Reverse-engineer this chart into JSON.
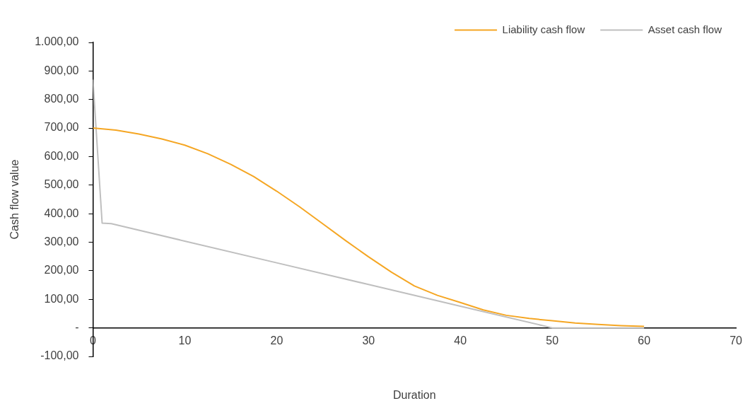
{
  "chart_data": {
    "type": "line",
    "xlabel": "Duration",
    "ylabel": "Cash flow value",
    "series": [
      {
        "name": "Liability cash flow",
        "color": "#f5a623",
        "x": [
          0,
          2.5,
          5,
          7.5,
          10,
          12.5,
          15,
          17.5,
          20,
          22.5,
          25,
          27.5,
          30,
          32.5,
          35,
          37.5,
          40,
          42.5,
          45,
          47.5,
          50,
          52.5,
          55,
          57.5,
          60
        ],
        "values": [
          700,
          693,
          679,
          662,
          640,
          610,
          573,
          530,
          479,
          424,
          365,
          306,
          249,
          195,
          147,
          114,
          89,
          63,
          44,
          33,
          25,
          17,
          12,
          8,
          5
        ]
      },
      {
        "name": "Asset cash flow",
        "color": "#bfbfbf",
        "x": [
          0,
          1,
          2,
          10,
          20,
          30,
          40,
          50,
          55,
          60
        ],
        "values": [
          870,
          367,
          365,
          304,
          228,
          152,
          76,
          0,
          0,
          0
        ]
      }
    ],
    "xlim": [
      0,
      70
    ],
    "xticks": [
      0,
      10,
      20,
      30,
      40,
      50,
      60,
      70
    ],
    "ylim": [
      -100,
      1000
    ],
    "yticks": [
      {
        "value": 1000,
        "label": "1.000,00"
      },
      {
        "value": 900,
        "label": "900,00"
      },
      {
        "value": 800,
        "label": "800,00"
      },
      {
        "value": 700,
        "label": "700,00"
      },
      {
        "value": 600,
        "label": "600,00"
      },
      {
        "value": 500,
        "label": "500,00"
      },
      {
        "value": 400,
        "label": "400,00"
      },
      {
        "value": 300,
        "label": "300,00"
      },
      {
        "value": 200,
        "label": "200,00"
      },
      {
        "value": 100,
        "label": "100,00"
      },
      {
        "value": 0,
        "label": "-"
      },
      {
        "value": -100,
        "label": "-100,00"
      }
    ],
    "grid": false,
    "legend": "top right",
    "marker": "none",
    "line_style": "solid"
  }
}
